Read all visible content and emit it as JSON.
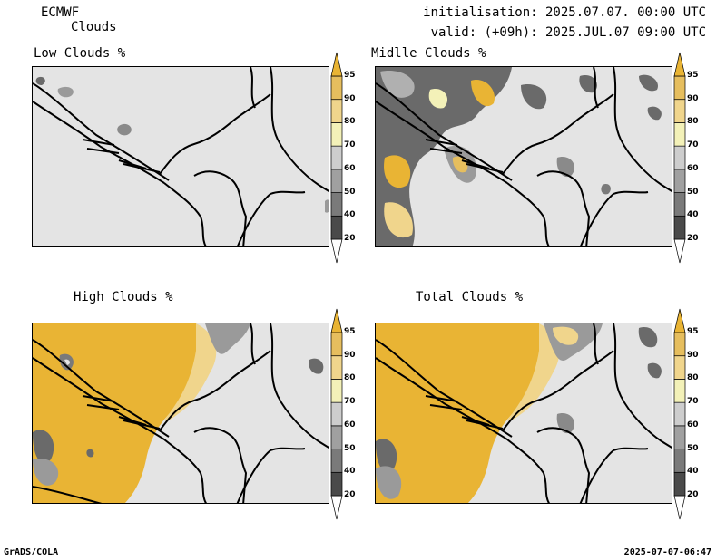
{
  "header": {
    "model": "ECMWF",
    "product": "Clouds",
    "initialisation": "initialisation: 2025.07.07. 00:00 UTC",
    "valid": "valid: (+09h): 2025.JUL.07 09:00 UTC"
  },
  "panels": [
    {
      "id": "low",
      "title": "Low Clouds %"
    },
    {
      "id": "middle",
      "title": "Midlle Clouds %"
    },
    {
      "id": "high",
      "title": "High Clouds %"
    },
    {
      "id": "total",
      "title": "Total Clouds %"
    }
  ],
  "colorbar": {
    "levels": [
      "20",
      "40",
      "50",
      "60",
      "70",
      "80",
      "90",
      "95"
    ],
    "colors": [
      "#ffffff",
      "#4a4a4a",
      "#7a7a7a",
      "#a0a0a0",
      "#cdcdcd",
      "#f3f1b8",
      "#f0d58c",
      "#e6be5e",
      "#e9b434"
    ]
  },
  "footer": {
    "left": "GrADS/COLA",
    "right": "2025-07-07-06:47"
  }
}
